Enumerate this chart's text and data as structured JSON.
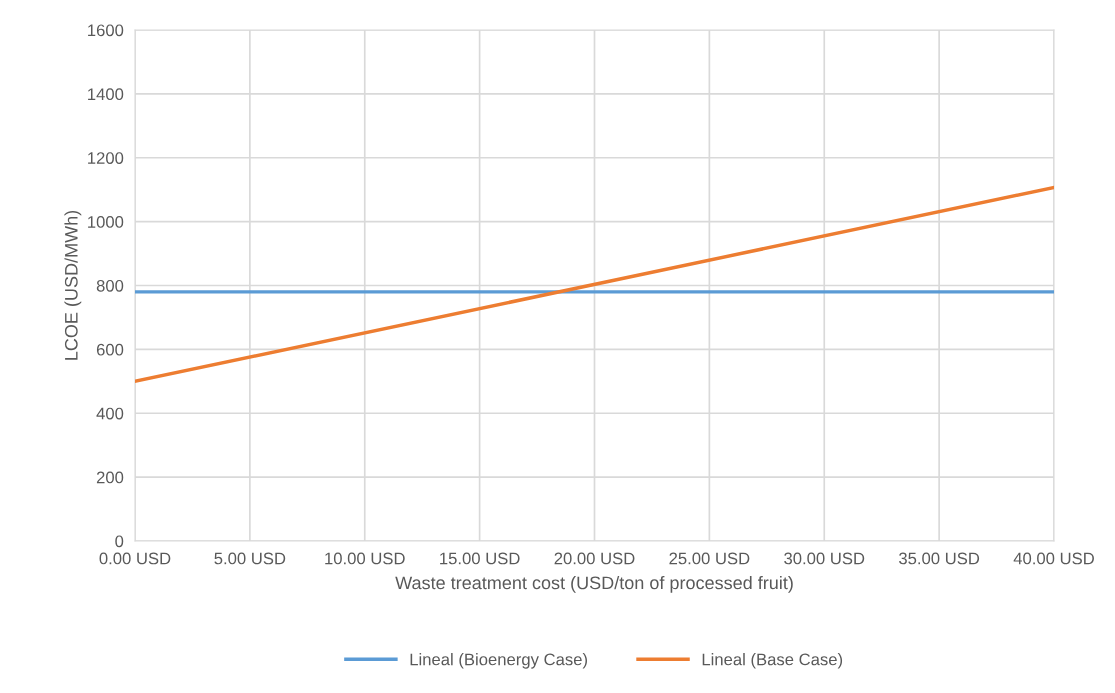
{
  "chart_data": {
    "type": "line",
    "xlabel": "Waste treatment cost (USD/ton of processed fruit)",
    "ylabel": "LCOE (USD/MWh)",
    "series": [
      {
        "name": "Lineal (Bioenergy Case)",
        "color": "#5b9bd5",
        "values": [
          780,
          780
        ]
      },
      {
        "name": "Lineal (Base Case)",
        "color": "#ed7d31",
        "values": [
          500,
          1107
        ]
      }
    ],
    "x": [
      0,
      40
    ],
    "xlim": [
      0,
      40
    ],
    "xticks": [
      {
        "value": 0,
        "label": "0.00 USD"
      },
      {
        "value": 5,
        "label": "5.00 USD"
      },
      {
        "value": 10,
        "label": "10.00 USD"
      },
      {
        "value": 15,
        "label": "15.00 USD"
      },
      {
        "value": 20,
        "label": "20.00 USD"
      },
      {
        "value": 25,
        "label": "25.00 USD"
      },
      {
        "value": 30,
        "label": "30.00 USD"
      },
      {
        "value": 35,
        "label": "35.00 USD"
      },
      {
        "value": 40,
        "label": "40.00 USD"
      }
    ],
    "ylim": [
      0,
      1600
    ],
    "yticks": [
      0,
      200,
      400,
      600,
      800,
      1000,
      1200,
      1400,
      1600
    ],
    "grid": true,
    "legend": "bottom",
    "marker": "none",
    "line_style": "solid"
  }
}
